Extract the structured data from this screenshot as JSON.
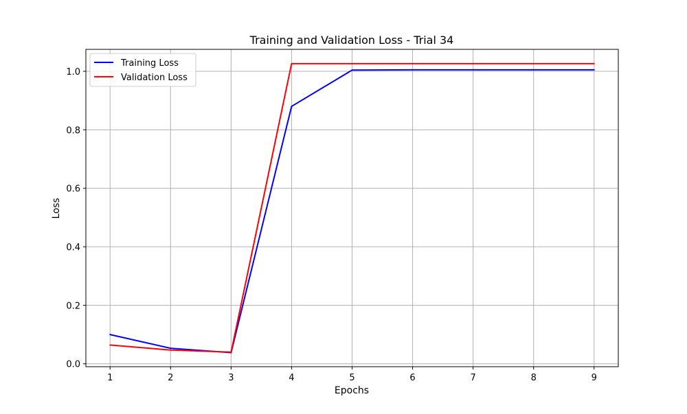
{
  "chart_data": {
    "type": "line",
    "title": "Training and Validation Loss - Trial 34",
    "xlabel": "Epochs",
    "ylabel": "Loss",
    "x": [
      1,
      2,
      3,
      4,
      5,
      6,
      7,
      8,
      9
    ],
    "xlim": [
      0.6,
      9.4
    ],
    "ylim": [
      -0.01,
      1.075
    ],
    "x_ticks": [
      "1",
      "2",
      "3",
      "4",
      "5",
      "6",
      "7",
      "8",
      "9"
    ],
    "y_ticks": [
      "0.0",
      "0.2",
      "0.4",
      "0.6",
      "0.8",
      "1.0"
    ],
    "grid": true,
    "legend_position": "top-left",
    "series": [
      {
        "name": "Training Loss",
        "color": "#0000ff",
        "values": [
          0.1,
          0.053,
          0.038,
          0.88,
          1.004,
          1.005,
          1.005,
          1.005,
          1.005
        ]
      },
      {
        "name": "Validation Loss",
        "color": "#ff0000",
        "values": [
          0.064,
          0.047,
          0.04,
          1.026,
          1.026,
          1.026,
          1.026,
          1.026,
          1.026
        ]
      }
    ]
  }
}
